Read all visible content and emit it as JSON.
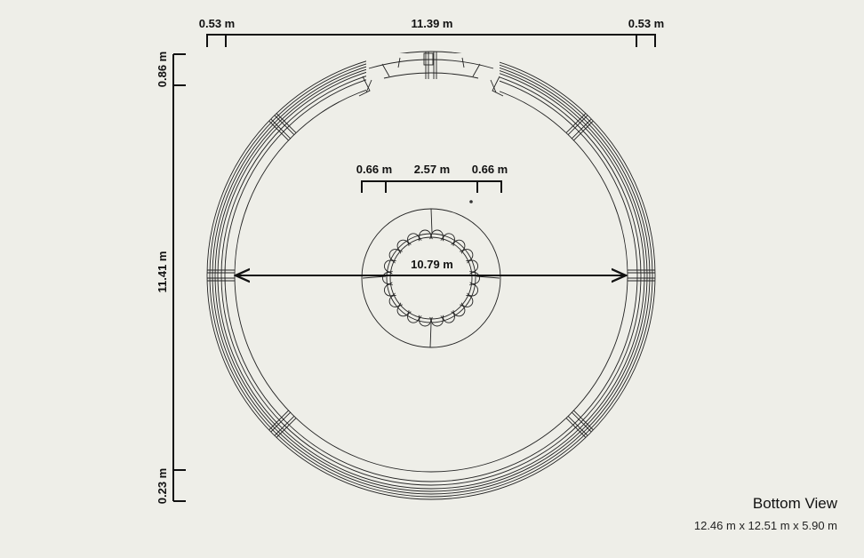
{
  "view": {
    "title": "Bottom View",
    "dimensions": "12.46 m x 12.51 m x 5.90 m"
  },
  "dims": {
    "top_left": "0.53 m",
    "top_center": "11.39 m",
    "top_right": "0.53 m",
    "left_top": "0.86 m",
    "left_middle": "11.41 m",
    "left_bottom": "0.23 m",
    "inner_left": "0.66 m",
    "inner_center": "2.57 m",
    "inner_right": "0.66 m",
    "diameter": "10.79 m"
  },
  "colors": {
    "background": "#eeeee8",
    "ink": "#111111"
  }
}
